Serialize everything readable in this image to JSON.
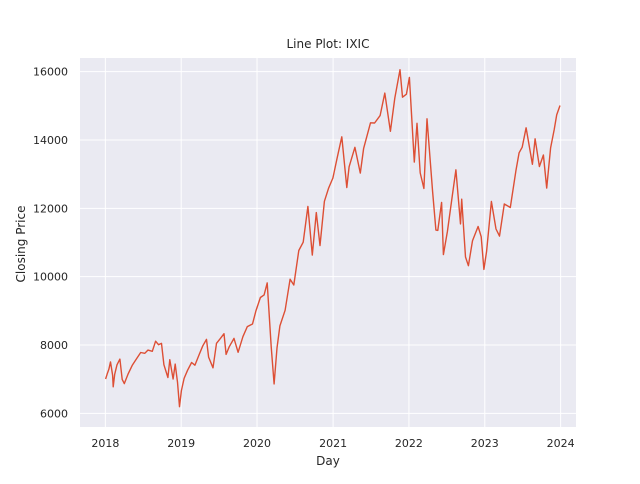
{
  "chart_data": {
    "type": "line",
    "title": "Line Plot: IXIC",
    "xlabel": "Day",
    "ylabel": "Closing Price",
    "xlim": [
      "2017-09-01",
      "2024-03-15"
    ],
    "ylim": [
      5600,
      16400
    ],
    "x_ticks": [
      "2018",
      "2019",
      "2020",
      "2021",
      "2022",
      "2023",
      "2024"
    ],
    "y_ticks": [
      6000,
      8000,
      10000,
      12000,
      14000,
      16000
    ],
    "grid": true,
    "legend": "none",
    "colors": {
      "background": "#eaeaf2",
      "grid": "#ffffff",
      "line": "#dd4f35",
      "text": "#262626"
    },
    "series": [
      {
        "x": [
          "2018-01-02",
          "2018-01-10",
          "2018-01-18",
          "2018-01-26",
          "2018-02-05",
          "2018-02-08",
          "2018-02-15",
          "2018-02-26",
          "2018-03-12",
          "2018-03-23",
          "2018-04-02",
          "2018-04-20",
          "2018-05-10",
          "2018-06-01",
          "2018-06-20",
          "2018-07-10",
          "2018-07-25",
          "2018-08-15",
          "2018-08-31",
          "2018-09-14",
          "2018-09-28",
          "2018-10-10",
          "2018-10-29",
          "2018-11-07",
          "2018-11-23",
          "2018-12-03",
          "2018-12-14",
          "2018-12-24",
          "2019-01-02",
          "2019-01-15",
          "2019-02-01",
          "2019-02-20",
          "2019-03-08",
          "2019-03-29",
          "2019-04-15",
          "2019-05-03",
          "2019-05-13",
          "2019-06-03",
          "2019-06-20",
          "2019-07-10",
          "2019-07-26",
          "2019-08-05",
          "2019-08-20",
          "2019-09-12",
          "2019-10-02",
          "2019-10-25",
          "2019-11-15",
          "2019-12-10",
          "2019-12-27",
          "2020-01-17",
          "2020-02-04",
          "2020-02-19",
          "2020-03-09",
          "2020-03-23",
          "2020-04-06",
          "2020-04-20",
          "2020-05-15",
          "2020-06-08",
          "2020-06-26",
          "2020-07-20",
          "2020-08-10",
          "2020-09-02",
          "2020-09-23",
          "2020-10-12",
          "2020-10-30",
          "2020-11-20",
          "2020-12-10",
          "2020-12-31",
          "2021-01-20",
          "2021-02-12",
          "2021-03-08",
          "2021-03-19",
          "2021-04-16",
          "2021-05-12",
          "2021-05-28",
          "2021-06-30",
          "2021-07-20",
          "2021-08-15",
          "2021-09-07",
          "2021-10-04",
          "2021-10-25",
          "2021-11-19",
          "2021-12-01",
          "2021-12-20",
          "2022-01-03",
          "2022-01-27",
          "2022-02-09",
          "2022-02-24",
          "2022-03-14",
          "2022-03-29",
          "2022-04-25",
          "2022-05-11",
          "2022-05-20",
          "2022-06-07",
          "2022-06-16",
          "2022-07-05",
          "2022-07-29",
          "2022-08-15",
          "2022-09-06",
          "2022-09-12",
          "2022-09-30",
          "2022-10-14",
          "2022-11-03",
          "2022-11-30",
          "2022-12-15",
          "2022-12-28",
          "2023-01-10",
          "2023-02-02",
          "2023-02-24",
          "2023-03-13",
          "2023-04-05",
          "2023-05-04",
          "2023-05-31",
          "2023-06-15",
          "2023-06-30",
          "2023-07-19",
          "2023-08-18",
          "2023-08-31",
          "2023-09-21",
          "2023-10-10",
          "2023-10-26",
          "2023-11-14",
          "2023-12-01",
          "2023-12-13",
          "2023-12-29"
        ],
        "y": [
          7006,
          7154,
          7296,
          7505,
          7120,
          6777,
          7143,
          7421,
          7588,
          6993,
          6871,
          7146,
          7404,
          7606,
          7781,
          7756,
          7852,
          7816,
          8110,
          8010,
          8046,
          7422,
          7050,
          7570,
          7004,
          7441,
          6911,
          6193,
          6665,
          7023,
          7263,
          7487,
          7408,
          7729,
          7976,
          8164,
          7647,
          7333,
          8051,
          8202,
          8330,
          7726,
          7948,
          8194,
          7786,
          8243,
          8540,
          8616,
          9007,
          9389,
          9467,
          9817,
          7950,
          6860,
          7913,
          8560,
          9015,
          9925,
          9757,
          10767,
          11010,
          12056,
          10633,
          11876,
          10911,
          12205,
          12582,
          12888,
          13457,
          14095,
          12609,
          13215,
          13786,
          13031,
          13749,
          14504,
          14498,
          14714,
          15374,
          14255,
          15226,
          16057,
          15254,
          15341,
          15833,
          13352,
          14490,
          13037,
          12581,
          14620,
          12490,
          11364,
          11354,
          12175,
          10646,
          11322,
          12391,
          13128,
          11544,
          12266,
          10575,
          10321,
          11053,
          11468,
          11170,
          10213,
          10742,
          12200,
          11395,
          11188,
          12126,
          12025,
          13100,
          13626,
          13788,
          14358,
          13290,
          14035,
          13224,
          13562,
          12596,
          13768,
          14305,
          14734,
          15011
        ]
      }
    ]
  }
}
